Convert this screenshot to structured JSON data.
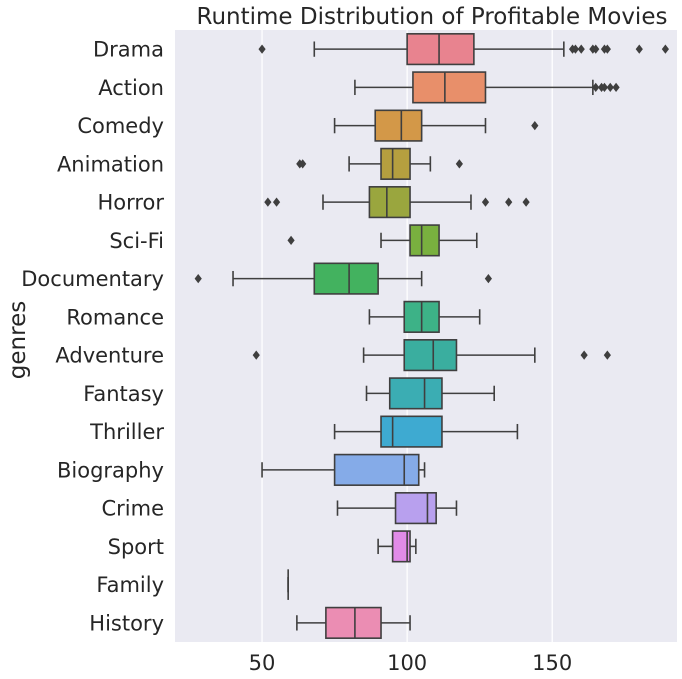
{
  "chart_data": {
    "type": "boxplot",
    "orientation": "horizontal",
    "title": "Runtime Distribution of Profitable Movies",
    "xlabel": "",
    "ylabel": "genres",
    "xlim": [
      20,
      193
    ],
    "xticks": [
      50,
      100,
      150
    ],
    "grid": true,
    "categories": [
      "Drama",
      "Action",
      "Comedy",
      "Animation",
      "Horror",
      "Sci-Fi",
      "Documentary",
      "Romance",
      "Adventure",
      "Fantasy",
      "Thriller",
      "Biography",
      "Crime",
      "Sport",
      "Family",
      "History"
    ],
    "boxes": [
      {
        "category": "Drama",
        "color": "#e8838f",
        "whislo": 68,
        "q1": 100,
        "med": 111,
        "q3": 123,
        "whishi": 154,
        "fliers": [
          50,
          157,
          158,
          160,
          164,
          165,
          168,
          169,
          180,
          189
        ]
      },
      {
        "category": "Action",
        "color": "#e88f6a",
        "whislo": 82,
        "q1": 102,
        "med": 113,
        "q3": 127,
        "whishi": 164,
        "fliers": [
          165,
          167,
          168,
          170,
          172
        ]
      },
      {
        "category": "Comedy",
        "color": "#d39848",
        "whislo": 75,
        "q1": 89,
        "med": 98,
        "q3": 105,
        "whishi": 127,
        "fliers": [
          144
        ]
      },
      {
        "category": "Animation",
        "color": "#b59f3f",
        "whislo": 80,
        "q1": 91,
        "med": 95,
        "q3": 101,
        "whishi": 108,
        "fliers": [
          63,
          64,
          118
        ]
      },
      {
        "category": "Horror",
        "color": "#9aa63e",
        "whislo": 71,
        "q1": 87,
        "med": 93,
        "q3": 101,
        "whishi": 122,
        "fliers": [
          52,
          55,
          127,
          135,
          141
        ]
      },
      {
        "category": "Sci-Fi",
        "color": "#79b03f",
        "whislo": 91,
        "q1": 101,
        "med": 105,
        "q3": 111,
        "whishi": 124,
        "fliers": [
          60
        ]
      },
      {
        "category": "Documentary",
        "color": "#43b25f",
        "whislo": 40,
        "q1": 68,
        "med": 80,
        "q3": 90,
        "whishi": 105,
        "fliers": [
          28,
          128
        ]
      },
      {
        "category": "Romance",
        "color": "#3db287",
        "whislo": 87,
        "q1": 99,
        "med": 105,
        "q3": 111,
        "whishi": 125,
        "fliers": []
      },
      {
        "category": "Adventure",
        "color": "#3aae9f",
        "whislo": 85,
        "q1": 99,
        "med": 109,
        "q3": 117,
        "whishi": 144,
        "fliers": [
          48,
          161,
          169
        ]
      },
      {
        "category": "Fantasy",
        "color": "#3badb3",
        "whislo": 86,
        "q1": 94,
        "med": 106,
        "q3": 112,
        "whishi": 130,
        "fliers": []
      },
      {
        "category": "Thriller",
        "color": "#3eaad1",
        "whislo": 75,
        "q1": 91,
        "med": 95,
        "q3": 112,
        "whishi": 138,
        "fliers": []
      },
      {
        "category": "Biography",
        "color": "#85abe8",
        "whislo": 50,
        "q1": 75,
        "med": 99,
        "q3": 104,
        "whishi": 106,
        "fliers": []
      },
      {
        "category": "Crime",
        "color": "#b8a0ee",
        "whislo": 76,
        "q1": 96,
        "med": 107,
        "q3": 110,
        "whishi": 117,
        "fliers": []
      },
      {
        "category": "Sport",
        "color": "#e18be8",
        "whislo": 90,
        "q1": 95,
        "med": 100,
        "q3": 101,
        "whishi": 103,
        "fliers": []
      },
      {
        "category": "Family",
        "color": "#ec8fcf",
        "whislo": 59,
        "q1": 59,
        "med": 59,
        "q3": 59,
        "whishi": 59,
        "fliers": []
      },
      {
        "category": "History",
        "color": "#eb8db3",
        "whislo": 62,
        "q1": 72,
        "med": 82,
        "q3": 91,
        "whishi": 101,
        "fliers": []
      }
    ]
  }
}
